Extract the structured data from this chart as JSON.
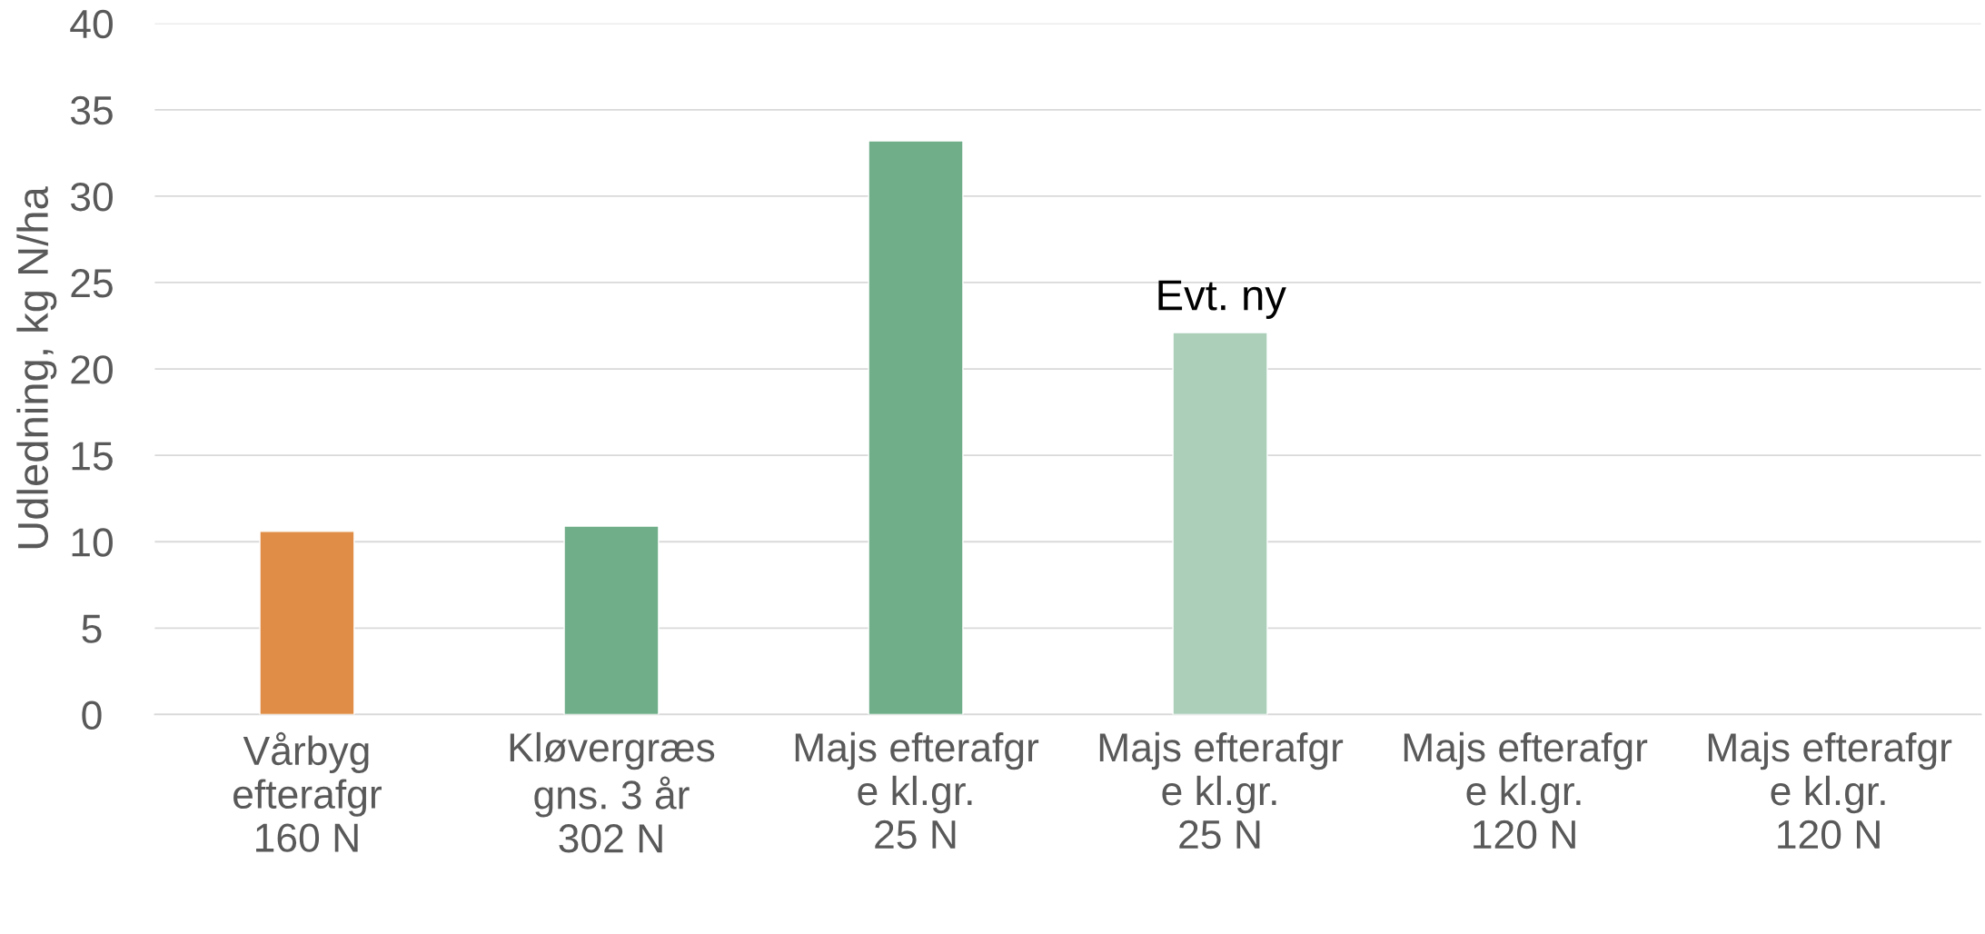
{
  "chart_data": {
    "type": "bar",
    "ylabel": "Udledning, kg N/ha",
    "categories": [
      "Vårbyg\nefterafgr\n160 N",
      "Kløvergræs\ngns. 3 år\n302 N",
      "Majs efterafgr\ne kl.gr.\n25 N",
      "Majs efterafgr\ne kl.gr.\n25 N",
      "Majs efterafgr\ne kl.gr.\n120 N",
      "Majs efterafgr\ne kl.gr.\n120 N"
    ],
    "values": [
      10.6,
      10.9,
      33.2,
      22.1,
      null,
      null
    ],
    "colors": [
      "#e08e47",
      "#70ae89",
      "#70ae89",
      "#abcfb8",
      "#70ae89",
      "#70ae89"
    ],
    "ylim": [
      0,
      40
    ],
    "yticks": [
      0,
      5,
      10,
      15,
      20,
      25,
      30,
      35,
      40
    ],
    "grid": "y",
    "legend": false,
    "annotations": [
      "Evt. ny"
    ]
  }
}
